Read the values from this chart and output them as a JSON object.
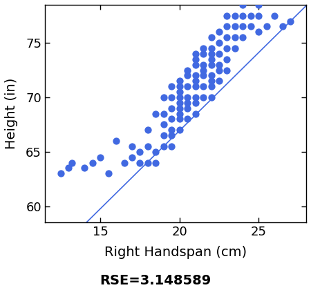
{
  "xlabel": "Right Handspan (cm)",
  "ylabel": "Height (in)",
  "rse_label": "RSE=3.148589",
  "xlim": [
    11.5,
    28.0
  ],
  "ylim": [
    58.5,
    78.5
  ],
  "xticks": [
    15,
    20,
    25
  ],
  "yticks": [
    60,
    65,
    70,
    75
  ],
  "dot_color": "#4169E1",
  "line_color": "#4169E1",
  "background": "#ffffff",
  "regression_intercept": 38.24,
  "regression_slope": 1.435,
  "scatter_x": [
    12.5,
    13.0,
    13.2,
    14.0,
    14.5,
    15.0,
    15.5,
    16.0,
    16.5,
    17.0,
    17.0,
    17.5,
    17.5,
    18.0,
    18.0,
    18.0,
    18.5,
    18.5,
    18.5,
    19.0,
    19.0,
    19.0,
    19.0,
    19.0,
    19.5,
    19.5,
    19.5,
    19.5,
    19.5,
    19.5,
    19.5,
    20.0,
    20.0,
    20.0,
    20.0,
    20.0,
    20.0,
    20.0,
    20.0,
    20.0,
    20.5,
    20.5,
    20.5,
    20.5,
    20.5,
    20.5,
    20.5,
    21.0,
    21.0,
    21.0,
    21.0,
    21.0,
    21.0,
    21.0,
    21.0,
    21.0,
    21.5,
    21.5,
    21.5,
    21.5,
    21.5,
    21.5,
    21.5,
    22.0,
    22.0,
    22.0,
    22.0,
    22.0,
    22.0,
    22.0,
    22.0,
    22.0,
    22.5,
    22.5,
    22.5,
    22.5,
    22.5,
    22.5,
    23.0,
    23.0,
    23.0,
    23.0,
    23.0,
    23.0,
    23.5,
    23.5,
    23.5,
    23.5,
    24.0,
    24.0,
    24.0,
    24.0,
    24.5,
    24.5,
    25.0,
    25.0,
    25.0,
    25.5,
    26.0,
    26.5,
    27.0
  ],
  "scatter_y": [
    63.0,
    63.5,
    64.0,
    63.5,
    64.0,
    64.5,
    63.0,
    66.0,
    64.0,
    65.5,
    64.5,
    65.0,
    64.0,
    67.0,
    65.5,
    64.0,
    68.5,
    65.0,
    64.0,
    70.0,
    68.5,
    67.5,
    66.5,
    65.5,
    71.0,
    70.0,
    69.0,
    68.0,
    67.0,
    66.5,
    65.5,
    71.5,
    71.0,
    70.5,
    70.0,
    69.5,
    69.0,
    68.5,
    68.0,
    67.0,
    72.5,
    72.0,
    71.0,
    70.0,
    69.5,
    69.0,
    68.0,
    74.0,
    73.5,
    73.0,
    72.0,
    71.5,
    71.0,
    70.0,
    69.5,
    68.5,
    74.5,
    74.0,
    73.0,
    72.5,
    72.0,
    71.0,
    70.0,
    75.5,
    74.5,
    74.0,
    73.5,
    73.0,
    72.0,
    71.5,
    71.0,
    70.0,
    76.0,
    75.0,
    74.0,
    73.0,
    72.5,
    71.5,
    77.5,
    76.5,
    75.5,
    74.5,
    73.5,
    72.5,
    77.5,
    76.5,
    75.5,
    74.5,
    78.5,
    77.5,
    76.5,
    75.5,
    77.5,
    76.5,
    78.5,
    77.5,
    76.0,
    76.5,
    77.5,
    76.5,
    77.0
  ]
}
